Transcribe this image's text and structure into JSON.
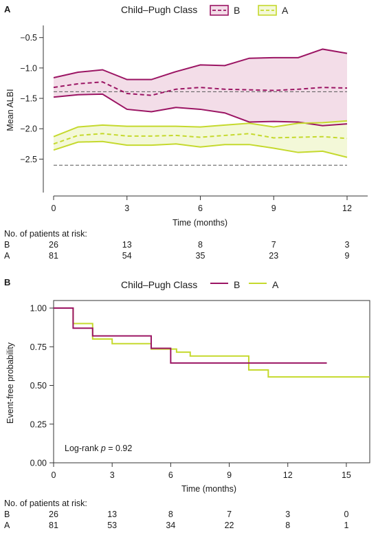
{
  "chart_data": [
    {
      "panel": "A",
      "type": "line",
      "legend_title": "Child–Pugh Class",
      "legend_placement": "top",
      "xlabel": "Time (months)",
      "ylabel": "Mean ALBI",
      "xlim": [
        0,
        13
      ],
      "ylim": [
        -3.05,
        -0.3
      ],
      "xticks": [
        0,
        3,
        6,
        9,
        12
      ],
      "yticks": [
        -0.5,
        -1.0,
        -1.5,
        -2.0,
        -2.5
      ],
      "ytick_labels": [
        "−0.5",
        "−1.0",
        "−1.5",
        "−2.0",
        "−2.5"
      ],
      "x": [
        0,
        1,
        2,
        3,
        4,
        5,
        6,
        7,
        8,
        9,
        10,
        11,
        12
      ],
      "series": [
        {
          "name": "B",
          "color": "#9b1463",
          "band_fill": "#f3dde8",
          "mean": [
            -1.32,
            -1.26,
            -1.23,
            -1.42,
            -1.45,
            -1.35,
            -1.32,
            -1.35,
            -1.36,
            -1.37,
            -1.35,
            -1.32,
            -1.33
          ],
          "upper": [
            -1.16,
            -1.07,
            -1.03,
            -1.19,
            -1.19,
            -1.06,
            -0.95,
            -0.96,
            -0.84,
            -0.83,
            -0.83,
            -0.69,
            -0.76
          ],
          "lower": [
            -1.48,
            -1.44,
            -1.43,
            -1.68,
            -1.72,
            -1.65,
            -1.68,
            -1.74,
            -1.89,
            -1.88,
            -1.89,
            -1.95,
            -1.92
          ]
        },
        {
          "name": "A",
          "color": "#c5d92d",
          "band_fill": "#f3f8d8",
          "mean": [
            -2.25,
            -2.11,
            -2.08,
            -2.12,
            -2.12,
            -2.11,
            -2.14,
            -2.11,
            -2.08,
            -2.15,
            -2.14,
            -2.13,
            -2.16
          ],
          "upper": [
            -2.13,
            -1.97,
            -1.94,
            -1.96,
            -1.96,
            -1.96,
            -1.97,
            -1.94,
            -1.91,
            -1.97,
            -1.91,
            -1.9,
            -1.87
          ],
          "lower": [
            -2.35,
            -2.22,
            -2.21,
            -2.27,
            -2.27,
            -2.25,
            -2.3,
            -2.26,
            -2.26,
            -2.32,
            -2.39,
            -2.37,
            -2.47
          ]
        }
      ],
      "reference_lines": [
        -1.39,
        -2.6
      ],
      "risk_table": {
        "title": "No. of patients at risk:",
        "times": [
          0,
          3,
          6,
          9,
          12
        ],
        "rows": [
          {
            "label": "B",
            "values": [
              "26",
              "13",
              "8",
              "7",
              "3"
            ]
          },
          {
            "label": "A",
            "values": [
              "81",
              "54",
              "35",
              "23",
              "9"
            ]
          }
        ]
      }
    },
    {
      "panel": "B",
      "type": "line",
      "legend_title": "Child–Pugh Class",
      "legend_placement": "top",
      "xlabel": "Time (months)",
      "ylabel": "Event-free probability",
      "xlim": [
        0,
        16.2
      ],
      "ylim": [
        0,
        1.0
      ],
      "xticks": [
        0,
        3,
        6,
        9,
        12,
        15
      ],
      "yticks": [
        1.0,
        0.75,
        0.5,
        0.25,
        0.0
      ],
      "ytick_labels": [
        "1.00",
        "0.75",
        "0.50",
        "0.25",
        "0.00"
      ],
      "series": [
        {
          "name": "B",
          "color": "#9b1463",
          "step_x": [
            0,
            1,
            2,
            5,
            6,
            14
          ],
          "step_y": [
            1.0,
            0.87,
            0.82,
            0.74,
            0.645,
            0.645
          ]
        },
        {
          "name": "A",
          "color": "#c5d92d",
          "step_x": [
            0,
            1,
            2,
            3,
            5,
            6.3,
            7,
            10,
            11,
            16.2
          ],
          "step_y": [
            1.0,
            0.9,
            0.8,
            0.77,
            0.735,
            0.715,
            0.69,
            0.6,
            0.555,
            0.555
          ]
        }
      ],
      "annotation_prefix": "Log-rank ",
      "annotation_p": "p",
      "annotation_value": " = 0.92",
      "risk_table": {
        "title": "No. of patients at risk:",
        "times": [
          0,
          3,
          6,
          9,
          12,
          15
        ],
        "rows": [
          {
            "label": "B",
            "values": [
              "26",
              "13",
              "8",
              "7",
              "3",
              "0"
            ]
          },
          {
            "label": "A",
            "values": [
              "81",
              "53",
              "34",
              "22",
              "8",
              "1"
            ]
          }
        ]
      }
    }
  ]
}
